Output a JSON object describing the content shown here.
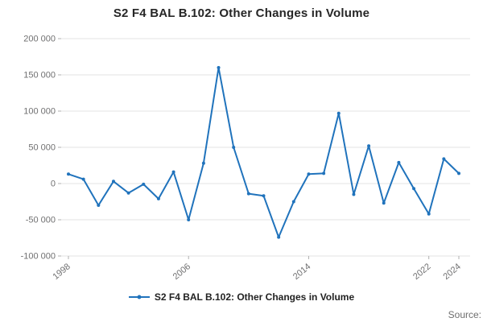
{
  "legend": {
    "label": "S2 F4 BAL B.102: Other Changes in Volume"
  },
  "footer": {
    "source": "Source:"
  },
  "colors": {
    "line": "#2073bc",
    "grid": "#e3e3e3",
    "tick": "#b0b0b0",
    "axis_text": "#707071",
    "title_text": "#262626"
  },
  "chart_data": {
    "type": "line",
    "title": "S2 F4 BAL B.102: Other Changes in Volume",
    "x": [
      1998,
      1999,
      2000,
      2001,
      2002,
      2003,
      2004,
      2005,
      2006,
      2007,
      2008,
      2009,
      2010,
      2011,
      2012,
      2013,
      2014,
      2015,
      2016,
      2017,
      2018,
      2019,
      2020,
      2021,
      2022,
      2023,
      2024
    ],
    "series": [
      {
        "name": "S2 F4 BAL B.102: Other Changes in Volume",
        "values": [
          13000,
          6000,
          -30000,
          3000,
          -13000,
          -1000,
          -21000,
          16000,
          -50000,
          28000,
          160000,
          50000,
          -14000,
          -17000,
          -74000,
          -25000,
          13000,
          14000,
          97000,
          -15000,
          52000,
          -27000,
          29000,
          -7000,
          -42000,
          34000,
          14000
        ]
      }
    ],
    "xlabel": "",
    "ylabel": "",
    "ylim": [
      -100000,
      200000
    ],
    "yticks": {
      "values": [
        200000,
        150000,
        100000,
        50000,
        0,
        -50000,
        -100000
      ],
      "labels": [
        "200 000",
        "150 000",
        "100 000",
        "50 000",
        "0",
        "-50 000",
        "-100 000"
      ]
    },
    "xticks": {
      "values": [
        1998,
        2006,
        2014,
        2022,
        2024
      ],
      "labels": [
        "1998",
        "2006",
        "2014",
        "2022",
        "2024"
      ]
    },
    "grid": "horizontal",
    "legend_position": "bottom"
  }
}
